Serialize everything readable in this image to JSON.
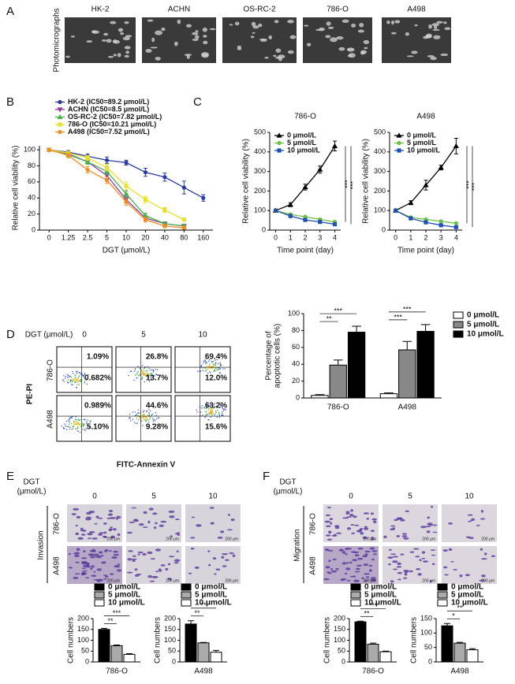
{
  "figure": {
    "panel_letters": [
      "A",
      "B",
      "C",
      "D",
      "E",
      "F"
    ],
    "a": {
      "ylabel": "Photomicrographs",
      "labels": [
        "HK-2",
        "ACHN",
        "OS-RC-2",
        "786-O",
        "A498"
      ]
    },
    "d": {
      "dose_label": "DGT (μmol/L)",
      "doses": [
        "0",
        "5",
        "10"
      ],
      "rows": [
        "786-O",
        "A498"
      ],
      "quadrants": [
        [
          [
            "1.09%",
            "0.682%"
          ],
          [
            "26.8%",
            "13.7%"
          ],
          [
            "69.4%",
            "12.0%"
          ]
        ],
        [
          [
            "0.989%",
            "5.10%"
          ],
          [
            "44.6%",
            "9.28%"
          ],
          [
            "63.2%",
            "15.6%"
          ]
        ]
      ],
      "ylabel": "PE-PI",
      "xlabel": "FITC-Annexin V"
    },
    "e": {
      "dose_label": [
        "DGT",
        "(μmol/L)"
      ],
      "doses": [
        "0",
        "5",
        "10"
      ],
      "rows": [
        "786-O",
        "A498"
      ],
      "side_label": "Invasion",
      "scale": "200 μm"
    },
    "f": {
      "dose_label": [
        "DGT",
        "(μmol/L)"
      ],
      "doses": [
        "0",
        "5",
        "10"
      ],
      "rows": [
        "786-O",
        "A498"
      ],
      "side_label": "Migration",
      "scale": "200 μm"
    }
  },
  "chart_data": [
    {
      "type": "line",
      "categories": [
        "0",
        "1.25",
        "2.5",
        "5",
        "10",
        "20",
        "40",
        "80",
        "160"
      ],
      "ylim": [
        0,
        105
      ],
      "yticks": [
        0,
        20,
        40,
        60,
        80,
        100
      ],
      "ylabel": "Relative cell viability (%)",
      "xlabel": "DGT (μmol/L)",
      "legend": "top",
      "series": [
        {
          "name": "HK-2 (IC50=89.2 μmol/L)",
          "color": "#2b3c9c",
          "marker": "circle",
          "values": [
            100,
            97,
            92,
            87,
            84,
            72,
            66,
            53,
            40
          ],
          "errors": [
            1,
            2,
            3,
            4,
            3,
            5,
            5,
            8,
            4
          ]
        },
        {
          "name": "ACHN (IC50=8.5 μmol/L)",
          "color": "#8e3fa0",
          "marker": "triangle-down",
          "values": [
            100,
            95,
            85,
            68,
            38,
            15,
            8,
            5,
            null
          ],
          "errors": [
            1,
            2,
            3,
            4,
            4,
            3,
            2,
            2,
            null
          ]
        },
        {
          "name": "OS-RC-2 (IC50=7.82 μmol/L)",
          "color": "#4caf50",
          "marker": "triangle",
          "values": [
            100,
            94,
            85,
            73,
            45,
            18,
            8,
            5,
            null
          ],
          "errors": [
            1,
            2,
            3,
            4,
            4,
            3,
            2,
            2,
            null
          ]
        },
        {
          "name": "786-O (IC50=10.21 μmol/L)",
          "color": "#e8e030",
          "marker": "square",
          "values": [
            100,
            96,
            90,
            78,
            55,
            38,
            25,
            13,
            null
          ],
          "errors": [
            1,
            2,
            3,
            4,
            5,
            4,
            3,
            2,
            null
          ]
        },
        {
          "name": "A498 (IC50=7.52 μmol/L)",
          "color": "#f08c28",
          "marker": "circle",
          "values": [
            100,
            93,
            75,
            62,
            35,
            13,
            5,
            3,
            null
          ],
          "errors": [
            1,
            3,
            4,
            4,
            4,
            3,
            2,
            2,
            null
          ]
        }
      ]
    },
    {
      "type": "line",
      "title": "786-O",
      "x": [
        0,
        1,
        2,
        3,
        4
      ],
      "xlim": [
        -0.4,
        4.4
      ],
      "xticks": [
        0,
        1,
        2,
        3,
        4
      ],
      "ylim": [
        0,
        500
      ],
      "yticks": [
        0,
        100,
        200,
        300,
        400,
        500
      ],
      "ylabel": "Relative cell viability (%)",
      "xlabel": "Time point (day)",
      "legend": "upper left",
      "series": [
        {
          "name": "0 μmol/L",
          "color": "#000000",
          "marker": "triangle",
          "values": [
            100,
            130,
            220,
            310,
            430
          ],
          "errors": [
            5,
            10,
            15,
            18,
            25
          ]
        },
        {
          "name": "5 μmol/L",
          "color": "#6cc04a",
          "marker": "circle",
          "values": [
            100,
            80,
            68,
            55,
            42
          ],
          "errors": [
            5,
            5,
            4,
            4,
            4
          ]
        },
        {
          "name": "10 μmol/L",
          "color": "#2250b0",
          "marker": "square",
          "values": [
            100,
            72,
            52,
            42,
            30
          ],
          "errors": [
            5,
            4,
            4,
            3,
            3
          ]
        }
      ],
      "annotations": [
        {
          "text": "***",
          "from": 0,
          "to": 1
        },
        {
          "text": "***",
          "from": 0,
          "to": 2
        }
      ]
    },
    {
      "type": "line",
      "title": "A498",
      "x": [
        0,
        1,
        2,
        3,
        4
      ],
      "xlim": [
        -0.4,
        4.4
      ],
      "xticks": [
        0,
        1,
        2,
        3,
        4
      ],
      "ylim": [
        0,
        500
      ],
      "yticks": [
        0,
        100,
        200,
        300,
        400,
        500
      ],
      "ylabel": "Relative cell viability (%)",
      "xlabel": "Time point (day)",
      "legend": "upper left",
      "series": [
        {
          "name": "0 μmol/L",
          "color": "#000000",
          "marker": "triangle",
          "values": [
            100,
            140,
            230,
            320,
            430
          ],
          "errors": [
            5,
            10,
            25,
            12,
            40
          ]
        },
        {
          "name": "5 μmol/L",
          "color": "#6cc04a",
          "marker": "circle",
          "values": [
            100,
            65,
            55,
            45,
            35
          ],
          "errors": [
            5,
            4,
            4,
            3,
            3
          ]
        },
        {
          "name": "10 μmol/L",
          "color": "#2250b0",
          "marker": "square",
          "values": [
            100,
            60,
            40,
            25,
            15
          ],
          "errors": [
            5,
            4,
            3,
            3,
            3
          ]
        }
      ],
      "annotations": [
        {
          "text": "***",
          "from": 0,
          "to": 1
        },
        {
          "text": "***",
          "from": 0,
          "to": 2
        }
      ]
    },
    {
      "type": "bar",
      "categories": [
        "786-O",
        "A498"
      ],
      "ylim": [
        0,
        100
      ],
      "yticks": [
        0,
        20,
        40,
        60,
        80,
        100
      ],
      "ylabel": [
        "Percentage of",
        "apoptotic cells (%)"
      ],
      "legend": "right",
      "series": [
        {
          "name": "0 μmol/L",
          "color": "#ffffff",
          "values": [
            3,
            5
          ],
          "errors": [
            1,
            1
          ]
        },
        {
          "name": "5 μmol/L",
          "color": "#888888",
          "values": [
            39,
            57
          ],
          "errors": [
            6,
            10
          ]
        },
        {
          "name": "10 μmol/L",
          "color": "#000000",
          "values": [
            78,
            79
          ],
          "errors": [
            7,
            8
          ]
        }
      ],
      "annotations": [
        {
          "text": "**",
          "category": 0,
          "from": 0,
          "to": 1
        },
        {
          "text": "***",
          "category": 0,
          "from": 0,
          "to": 2
        },
        {
          "text": "***",
          "category": 1,
          "from": 0,
          "to": 1
        },
        {
          "text": "***",
          "category": 1,
          "from": 0,
          "to": 2
        }
      ]
    },
    {
      "type": "bar",
      "categories": [
        "786-O"
      ],
      "ylim": [
        0,
        200
      ],
      "yticks": [
        0,
        50,
        100,
        150,
        200
      ],
      "ylabel": "Cell numbers",
      "legend": "top",
      "series": [
        {
          "name": "0 μmol/L",
          "color": "#000000",
          "values": [
            150
          ],
          "errors": [
            5
          ]
        },
        {
          "name": "5 μmol/L",
          "color": "#aaaaaa",
          "values": [
            75
          ],
          "errors": [
            3
          ]
        },
        {
          "name": "10 μmol/L",
          "color": "#ffffff",
          "values": [
            35
          ],
          "errors": [
            3
          ]
        }
      ],
      "annotations": [
        {
          "text": "**",
          "category": 0,
          "from": 0,
          "to": 1
        },
        {
          "text": "***",
          "category": 0,
          "from": 0,
          "to": 2
        }
      ]
    },
    {
      "type": "bar",
      "categories": [
        "A498"
      ],
      "ylim": [
        0,
        200
      ],
      "yticks": [
        0,
        50,
        100,
        150,
        200
      ],
      "ylabel": "Cell numbers",
      "legend": "top",
      "series": [
        {
          "name": "0 μmol/L",
          "color": "#000000",
          "values": [
            175
          ],
          "errors": [
            15
          ]
        },
        {
          "name": "5 μmol/L",
          "color": "#aaaaaa",
          "values": [
            88
          ],
          "errors": [
            2
          ]
        },
        {
          "name": "10 μmol/L",
          "color": "#ffffff",
          "values": [
            45
          ],
          "errors": [
            8
          ]
        }
      ],
      "annotations": [
        {
          "text": "**",
          "category": 0,
          "from": 0,
          "to": 1
        },
        {
          "text": "**",
          "category": 0,
          "from": 0,
          "to": 2
        }
      ]
    },
    {
      "type": "bar",
      "categories": [
        "786-O"
      ],
      "ylim": [
        0,
        200
      ],
      "yticks": [
        0,
        50,
        100,
        150,
        200
      ],
      "ylabel": "Cell numbers",
      "legend": "top",
      "series": [
        {
          "name": "0 μmol/L",
          "color": "#000000",
          "values": [
            185
          ],
          "errors": [
            3
          ]
        },
        {
          "name": "5 μmol/L",
          "color": "#aaaaaa",
          "values": [
            82
          ],
          "errors": [
            5
          ]
        },
        {
          "name": "10 μmol/L",
          "color": "#ffffff",
          "values": [
            47
          ],
          "errors": [
            3
          ]
        }
      ],
      "annotations": [
        {
          "text": "**",
          "category": 0,
          "from": 0,
          "to": 1
        },
        {
          "text": "***",
          "category": 0,
          "from": 0,
          "to": 2
        }
      ]
    },
    {
      "type": "bar",
      "categories": [
        "A498"
      ],
      "ylim": [
        0,
        150
      ],
      "yticks": [
        0,
        50,
        100,
        150
      ],
      "ylabel": "Cell numbers",
      "legend": "top",
      "series": [
        {
          "name": "0 μmol/L",
          "color": "#000000",
          "values": [
            125
          ],
          "errors": [
            8
          ]
        },
        {
          "name": "5 μmol/L",
          "color": "#aaaaaa",
          "values": [
            65
          ],
          "errors": [
            3
          ]
        },
        {
          "name": "10 μmol/L",
          "color": "#ffffff",
          "values": [
            42
          ],
          "errors": [
            4
          ]
        }
      ],
      "annotations": [
        {
          "text": "*",
          "category": 0,
          "from": 0,
          "to": 1
        },
        {
          "text": "**",
          "category": 0,
          "from": 0,
          "to": 2
        }
      ]
    }
  ]
}
